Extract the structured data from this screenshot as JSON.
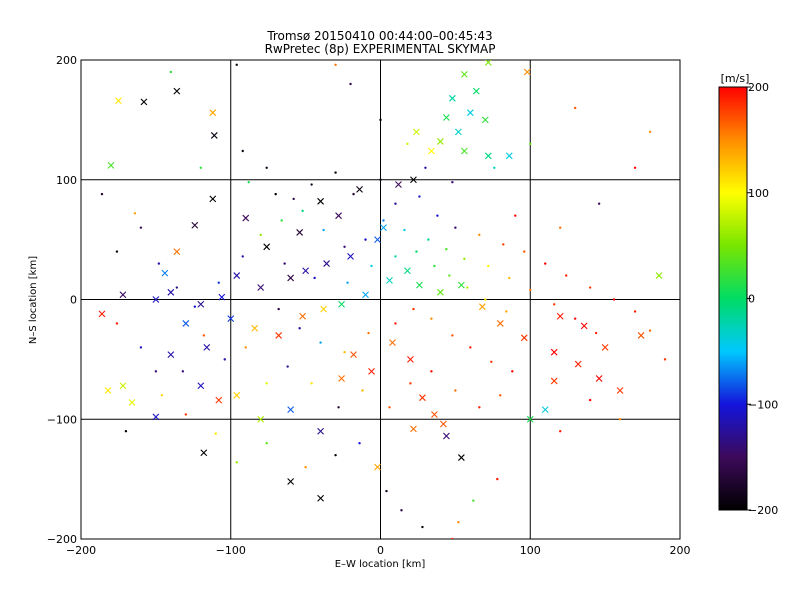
{
  "chart_data": {
    "type": "scatter",
    "title": "Tromsø 20150410 00:44:00–00:45:43",
    "subtitle": "RwPretec (8p) EXPERIMENTAL SKYMAP",
    "xlabel": "E–W location [km]",
    "ylabel": "N–S location [km]",
    "xlim": [
      -200,
      200
    ],
    "ylim": [
      -200,
      200
    ],
    "x_ticks": [
      -200,
      -100,
      0,
      100,
      200
    ],
    "y_ticks": [
      -200,
      -100,
      0,
      100,
      200
    ],
    "x_tick_labels": [
      "−200",
      "−100",
      "0",
      "100",
      "200"
    ],
    "y_tick_labels": [
      "−200",
      "−100",
      "0",
      "100",
      "200"
    ],
    "grid": true,
    "marker_types": [
      "x",
      "dot"
    ],
    "colorbar": {
      "label": "[m/s]",
      "range": [
        -200,
        200
      ],
      "ticks": [
        -200,
        -100,
        0,
        100,
        200
      ],
      "tick_labels": [
        "−200",
        "−100",
        "0",
        "100",
        "200"
      ],
      "colormap": [
        "#000000",
        "#3c0a5a",
        "#1414dc",
        "#00c8ff",
        "#00dc64",
        "#78e600",
        "#ffff00",
        "#ff8c00",
        "#ff0000"
      ]
    },
    "series": [
      {
        "marker": "x",
        "points": [
          [
            -175,
            166,
            110
          ],
          [
            -158,
            165,
            -200
          ],
          [
            -136,
            174,
            -200
          ],
          [
            -112,
            156,
            140
          ],
          [
            -111,
            137,
            -190
          ],
          [
            -180,
            112,
            30
          ],
          [
            72,
            198,
            50
          ],
          [
            56,
            188,
            40
          ],
          [
            64,
            174,
            0
          ],
          [
            48,
            168,
            -20
          ],
          [
            60,
            156,
            -40
          ],
          [
            44,
            152,
            10
          ],
          [
            70,
            150,
            20
          ],
          [
            52,
            140,
            -30
          ],
          [
            40,
            132,
            60
          ],
          [
            56,
            124,
            30
          ],
          [
            72,
            120,
            -10
          ],
          [
            24,
            140,
            80
          ],
          [
            34,
            124,
            100
          ],
          [
            86,
            120,
            -40
          ],
          [
            98,
            190,
            150
          ],
          [
            -40,
            82,
            -200
          ],
          [
            -28,
            70,
            -150
          ],
          [
            -54,
            56,
            -170
          ],
          [
            -14,
            92,
            -190
          ],
          [
            12,
            96,
            -150
          ],
          [
            22,
            100,
            -200
          ],
          [
            2,
            60,
            -60
          ],
          [
            -2,
            50,
            -80
          ],
          [
            -20,
            36,
            -110
          ],
          [
            -36,
            30,
            -130
          ],
          [
            -50,
            24,
            -120
          ],
          [
            -60,
            18,
            -160
          ],
          [
            -80,
            10,
            -140
          ],
          [
            -96,
            20,
            -120
          ],
          [
            -106,
            2,
            -100
          ],
          [
            -120,
            -4,
            -130
          ],
          [
            -140,
            6,
            -120
          ],
          [
            -150,
            0,
            -110
          ],
          [
            -172,
            4,
            -150
          ],
          [
            -130,
            -20,
            -80
          ],
          [
            -116,
            -40,
            -120
          ],
          [
            -100,
            -16,
            -90
          ],
          [
            -84,
            -24,
            130
          ],
          [
            -68,
            -30,
            180
          ],
          [
            -52,
            -14,
            160
          ],
          [
            -38,
            -8,
            120
          ],
          [
            -26,
            -4,
            0
          ],
          [
            -10,
            4,
            -60
          ],
          [
            6,
            16,
            -30
          ],
          [
            18,
            24,
            -10
          ],
          [
            26,
            12,
            10
          ],
          [
            40,
            6,
            40
          ],
          [
            54,
            12,
            20
          ],
          [
            68,
            -6,
            140
          ],
          [
            80,
            -20,
            160
          ],
          [
            96,
            -32,
            180
          ],
          [
            116,
            -44,
            200
          ],
          [
            132,
            -54,
            190
          ],
          [
            146,
            -66,
            200
          ],
          [
            160,
            -76,
            180
          ],
          [
            174,
            -30,
            170
          ],
          [
            186,
            20,
            60
          ],
          [
            -186,
            -12,
            190
          ],
          [
            -182,
            -76,
            110
          ],
          [
            -172,
            -72,
            80
          ],
          [
            -166,
            -86,
            90
          ],
          [
            -140,
            -46,
            -120
          ],
          [
            -120,
            -72,
            -110
          ],
          [
            -96,
            -80,
            120
          ],
          [
            -80,
            -100,
            70
          ],
          [
            -60,
            -92,
            -80
          ],
          [
            -40,
            -110,
            -130
          ],
          [
            -26,
            -66,
            160
          ],
          [
            -18,
            -46,
            170
          ],
          [
            -6,
            -60,
            190
          ],
          [
            8,
            -36,
            160
          ],
          [
            20,
            -50,
            190
          ],
          [
            28,
            -82,
            180
          ],
          [
            36,
            -96,
            170
          ],
          [
            44,
            -114,
            -140
          ],
          [
            54,
            -132,
            -200
          ],
          [
            -60,
            -152,
            -200
          ],
          [
            -40,
            -166,
            -200
          ],
          [
            -2,
            -140,
            140
          ],
          [
            22,
            -108,
            160
          ],
          [
            42,
            -104,
            170
          ],
          [
            100,
            -100,
            10
          ],
          [
            110,
            -92,
            -40
          ],
          [
            116,
            -68,
            180
          ],
          [
            -118,
            -128,
            -200
          ],
          [
            -150,
            -98,
            -110
          ],
          [
            -108,
            -84,
            180
          ],
          [
            120,
            -14,
            190
          ],
          [
            136,
            -22,
            200
          ],
          [
            150,
            -40,
            180
          ],
          [
            -136,
            40,
            160
          ],
          [
            -144,
            22,
            -70
          ],
          [
            -124,
            62,
            -170
          ],
          [
            -112,
            84,
            -200
          ],
          [
            -90,
            68,
            -150
          ],
          [
            -76,
            44,
            -200
          ]
        ]
      },
      {
        "marker": "dot",
        "points": [
          [
            -160,
            60,
            -150
          ],
          [
            -120,
            110,
            20
          ],
          [
            -92,
            124,
            -190
          ],
          [
            -76,
            110,
            -180
          ],
          [
            -88,
            98,
            10
          ],
          [
            -70,
            88,
            -200
          ],
          [
            -58,
            84,
            -160
          ],
          [
            -46,
            96,
            -180
          ],
          [
            -30,
            106,
            -200
          ],
          [
            -18,
            88,
            -170
          ],
          [
            0,
            100,
            -190
          ],
          [
            10,
            80,
            -130
          ],
          [
            26,
            86,
            -110
          ],
          [
            38,
            70,
            -100
          ],
          [
            50,
            60,
            -140
          ],
          [
            66,
            54,
            150
          ],
          [
            82,
            46,
            180
          ],
          [
            96,
            40,
            170
          ],
          [
            110,
            30,
            200
          ],
          [
            124,
            20,
            190
          ],
          [
            140,
            10,
            180
          ],
          [
            156,
            0,
            200
          ],
          [
            170,
            -10,
            190
          ],
          [
            180,
            -26,
            160
          ],
          [
            190,
            -50,
            180
          ],
          [
            160,
            -100,
            150
          ],
          [
            140,
            -84,
            200
          ],
          [
            120,
            -110,
            190
          ],
          [
            -150,
            -60,
            -140
          ],
          [
            -130,
            -96,
            180
          ],
          [
            -110,
            -112,
            110
          ],
          [
            -96,
            -136,
            60
          ],
          [
            -76,
            -120,
            40
          ],
          [
            -50,
            -140,
            150
          ],
          [
            -30,
            -130,
            -200
          ],
          [
            -14,
            -120,
            -100
          ],
          [
            4,
            -160,
            -180
          ],
          [
            14,
            -176,
            -160
          ],
          [
            28,
            -190,
            -200
          ],
          [
            48,
            -200,
            190
          ],
          [
            52,
            -186,
            150
          ],
          [
            62,
            -168,
            30
          ],
          [
            78,
            -150,
            190
          ],
          [
            -64,
            30,
            -140
          ],
          [
            -44,
            18,
            -110
          ],
          [
            -22,
            14,
            -60
          ],
          [
            -6,
            28,
            -40
          ],
          [
            10,
            36,
            -20
          ],
          [
            24,
            40,
            0
          ],
          [
            36,
            28,
            20
          ],
          [
            46,
            20,
            40
          ],
          [
            58,
            10,
            70
          ],
          [
            70,
            0,
            110
          ],
          [
            84,
            -10,
            140
          ],
          [
            -68,
            -8,
            -160
          ],
          [
            -54,
            -24,
            -120
          ],
          [
            -40,
            -36,
            -60
          ],
          [
            -24,
            -44,
            130
          ],
          [
            -8,
            -28,
            160
          ],
          [
            10,
            -20,
            190
          ],
          [
            22,
            -8,
            180
          ],
          [
            34,
            -16,
            150
          ],
          [
            48,
            -30,
            170
          ],
          [
            60,
            -40,
            190
          ],
          [
            74,
            -52,
            180
          ],
          [
            88,
            -60,
            200
          ],
          [
            -148,
            30,
            -120
          ],
          [
            -136,
            10,
            -130
          ],
          [
            -124,
            -6,
            -100
          ],
          [
            -108,
            14,
            -90
          ],
          [
            -92,
            36,
            -120
          ],
          [
            -80,
            54,
            60
          ],
          [
            -66,
            66,
            20
          ],
          [
            -52,
            74,
            -10
          ],
          [
            -38,
            58,
            -60
          ],
          [
            -24,
            44,
            -140
          ],
          [
            -10,
            50,
            -110
          ],
          [
            2,
            66,
            -70
          ],
          [
            16,
            58,
            -40
          ],
          [
            32,
            50,
            -10
          ],
          [
            44,
            42,
            30
          ],
          [
            56,
            34,
            60
          ],
          [
            72,
            28,
            100
          ],
          [
            86,
            18,
            130
          ],
          [
            100,
            8,
            160
          ],
          [
            116,
            -4,
            180
          ],
          [
            130,
            -16,
            200
          ],
          [
            144,
            -28,
            190
          ],
          [
            -170,
            -110,
            -200
          ],
          [
            -186,
            88,
            -170
          ],
          [
            -176,
            40,
            -190
          ],
          [
            -164,
            72,
            140
          ],
          [
            -140,
            190,
            20
          ],
          [
            -96,
            196,
            -200
          ],
          [
            -30,
            196,
            160
          ],
          [
            -20,
            180,
            -160
          ],
          [
            0,
            150,
            -200
          ],
          [
            18,
            130,
            80
          ],
          [
            30,
            110,
            -120
          ],
          [
            48,
            98,
            -140
          ],
          [
            90,
            70,
            200
          ],
          [
            120,
            60,
            160
          ],
          [
            146,
            80,
            -150
          ],
          [
            170,
            110,
            200
          ],
          [
            180,
            140,
            150
          ],
          [
            130,
            160,
            170
          ],
          [
            100,
            130,
            40
          ],
          [
            76,
            110,
            -30
          ],
          [
            -12,
            -76,
            130
          ],
          [
            -28,
            -90,
            -170
          ],
          [
            -46,
            -70,
            110
          ],
          [
            -62,
            -56,
            -130
          ],
          [
            -76,
            -70,
            90
          ],
          [
            -90,
            -40,
            150
          ],
          [
            -104,
            -50,
            -120
          ],
          [
            -118,
            -30,
            170
          ],
          [
            -132,
            -60,
            -140
          ],
          [
            -146,
            -80,
            120
          ],
          [
            -160,
            -40,
            -110
          ],
          [
            -176,
            -20,
            190
          ],
          [
            6,
            -90,
            170
          ],
          [
            20,
            -70,
            180
          ],
          [
            34,
            -60,
            200
          ],
          [
            50,
            -76,
            160
          ],
          [
            66,
            -90,
            190
          ],
          [
            80,
            -80,
            170
          ]
        ]
      }
    ]
  }
}
